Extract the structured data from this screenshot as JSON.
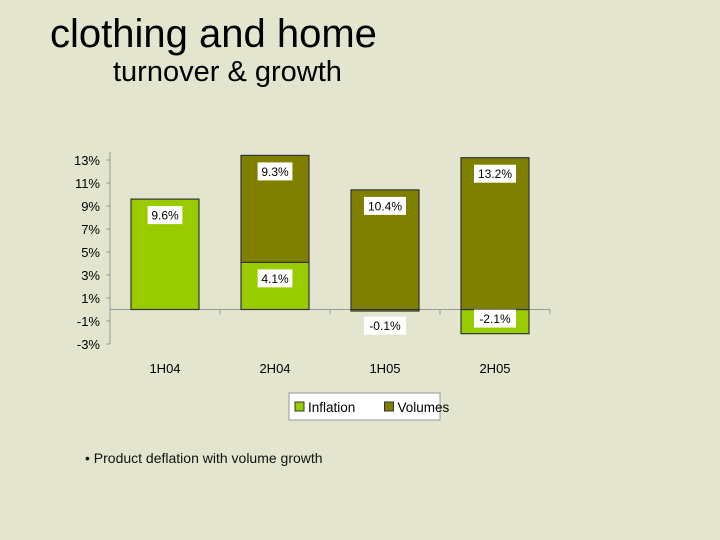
{
  "slide": {
    "title": "clothing and home",
    "subtitle": "turnover & growth",
    "bullet": "• Product deflation with volume growth"
  },
  "chart_data": {
    "type": "bar",
    "stacked": true,
    "title": "",
    "xlabel": "",
    "ylabel": "",
    "categories": [
      "1H04",
      "2H04",
      "1H05",
      "2H05"
    ],
    "ylim": [
      -3,
      13
    ],
    "yticks": [
      13,
      11,
      9,
      7,
      5,
      3,
      1,
      -1,
      -3
    ],
    "ytick_labels": [
      "13%",
      "11%",
      "9%",
      "7%",
      "5%",
      "3%",
      "1%",
      "-1%",
      "-3%"
    ],
    "series": [
      {
        "name": "Inflation",
        "color": "#99cc00",
        "values": [
          9.6,
          4.1,
          -0.1,
          -2.1
        ],
        "labels": [
          "9.6%",
          "4.1%",
          "-0.1%",
          "-2.1%"
        ]
      },
      {
        "name": "Volumes",
        "color": "#808000",
        "values": [
          0,
          9.3,
          10.4,
          13.2
        ],
        "labels": [
          "",
          "9.3%",
          "10.4%",
          "13.2%"
        ]
      }
    ],
    "legend": {
      "position": "bottom-center",
      "entries": [
        "Inflation",
        "Volumes"
      ]
    }
  }
}
